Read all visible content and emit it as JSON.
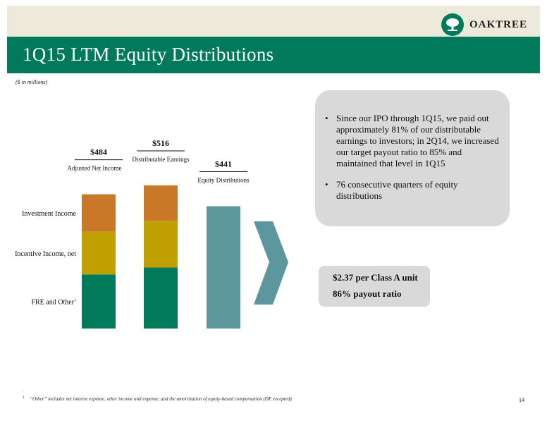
{
  "header": {
    "logo_text": "OAKTREE",
    "title": "1Q15 LTM Equity Distributions"
  },
  "units_note": "($ in millions)",
  "chart_data": {
    "type": "bar",
    "stacked": true,
    "bars": [
      {
        "label": "Adjusted Net Income",
        "total_label": "$484",
        "total": 484
      },
      {
        "label": "Distributable Earnings",
        "total_label": "$516",
        "total": 516
      },
      {
        "label": "Equity Distributions",
        "total_label": "$441",
        "total": 441
      }
    ],
    "series": [
      {
        "name": "FRE and Other",
        "footnote_marker": "1",
        "color": "#007a5a",
        "values": [
          195,
          220,
          null
        ]
      },
      {
        "name": "Incentive Income, net",
        "color": "#c0a000",
        "values": [
          154,
          168,
          null
        ]
      },
      {
        "name": "Investment Income",
        "color": "#c87826",
        "values": [
          135,
          128,
          null
        ]
      },
      {
        "name": "Equity Distributions",
        "color": "#5b979c",
        "values": [
          null,
          null,
          441
        ]
      }
    ],
    "legend_position": "left",
    "grid": false
  },
  "callout": {
    "bullets": [
      "Since our IPO through 1Q15, we paid out approximately 81% of our distributable earnings to investors; in 2Q14, we increased our target payout ratio to 85% and maintained that level in 1Q15",
      "76 consecutive quarters of equity distributions"
    ]
  },
  "unit_box": {
    "line1": "$2.37 per Class A unit",
    "line2": "86% payout ratio"
  },
  "footnote": {
    "marker": "1",
    "text": "“Other” includes net interest expense, other income and expense, and the amortization of equity-based compensation (DE excepted)."
  },
  "page_number": "14",
  "colors": {
    "brand_green": "#007a5a",
    "topbar": "#eeeadb",
    "callout_bg": "#d9d9d9",
    "arrow": "#5b979c"
  }
}
